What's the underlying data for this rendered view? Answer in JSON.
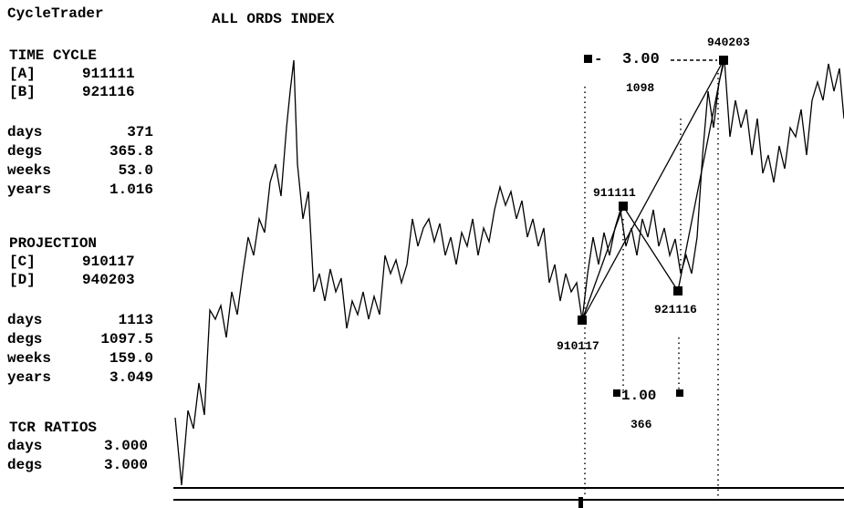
{
  "app": {
    "title": "CycleTrader"
  },
  "chart": {
    "title": "ALL ORDS INDEX",
    "points": [
      "910117",
      "911111",
      "921116",
      "940203"
    ],
    "ratio_big": {
      "value": "3.00",
      "note": "1098"
    },
    "ratio_small": {
      "value": "1.00",
      "note": "366"
    }
  },
  "time_cycle": {
    "title": "TIME CYCLE",
    "rows": [
      [
        "[A]",
        "911111"
      ],
      [
        "[B]",
        "921116"
      ]
    ],
    "stats": [
      [
        "days",
        "371"
      ],
      [
        "degs",
        "365.8"
      ],
      [
        "weeks",
        "53.0"
      ],
      [
        "years",
        "1.016"
      ]
    ]
  },
  "projection": {
    "title": "PROJECTION",
    "rows": [
      [
        "[C]",
        "910117"
      ],
      [
        "[D]",
        "940203"
      ]
    ],
    "stats": [
      [
        "days",
        "1113"
      ],
      [
        "degs",
        "1097.5"
      ],
      [
        "weeks",
        "159.0"
      ],
      [
        "years",
        "3.049"
      ]
    ]
  },
  "tcr": {
    "title": "TCR RATIOS",
    "stats": [
      [
        "days",
        "3.000"
      ],
      [
        "degs",
        "3.000"
      ]
    ]
  }
}
